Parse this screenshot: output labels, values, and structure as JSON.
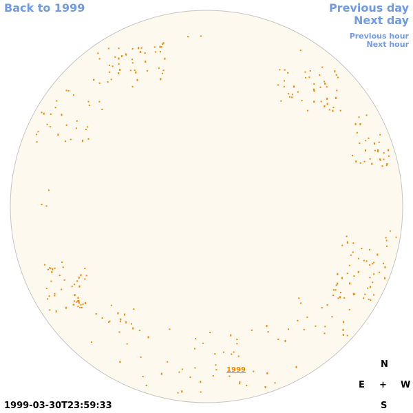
{
  "nav": {
    "back_label": "Back to 1999",
    "previous_day": "Previous day",
    "next_day": "Next day",
    "previous_hour": "Previous hour",
    "next_hour": "Next hour"
  },
  "disk": {
    "year_label": "1999",
    "fill_color": "#fef9ee",
    "outline_color": "#c4c4c4",
    "feature_color": "#f08a00"
  },
  "compass": {
    "north": "N",
    "east": "E",
    "center": "+",
    "west": "W",
    "south": "S"
  },
  "timestamp": "1999-03-30T23:59:33"
}
